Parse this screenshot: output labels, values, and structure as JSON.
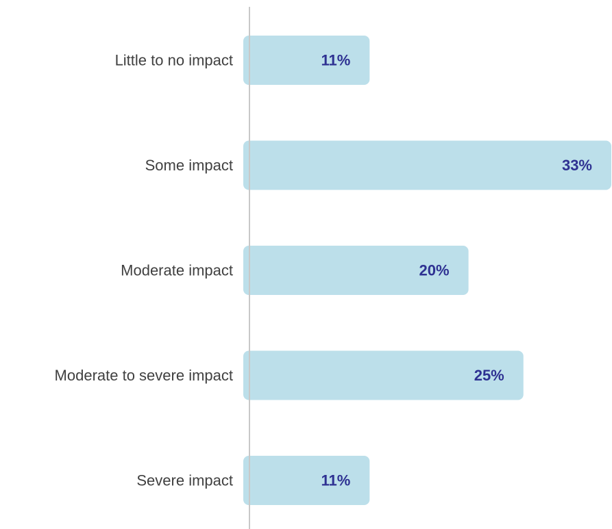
{
  "chart_data": {
    "type": "bar",
    "orientation": "horizontal",
    "categories": [
      "Little to no impact",
      "Some impact",
      "Moderate impact",
      "Moderate to severe impact",
      "Severe impact"
    ],
    "values": [
      11,
      33,
      20,
      25,
      11
    ],
    "value_labels": [
      "11%",
      "33%",
      "20%",
      "25%",
      "11%"
    ],
    "xlim": [
      0,
      33
    ],
    "grid": false,
    "legend": "none"
  },
  "colors": {
    "bar": "#bcdfea",
    "value_text": "#2e3192",
    "category_text": "#404040",
    "axis": "#c8c8c8"
  }
}
